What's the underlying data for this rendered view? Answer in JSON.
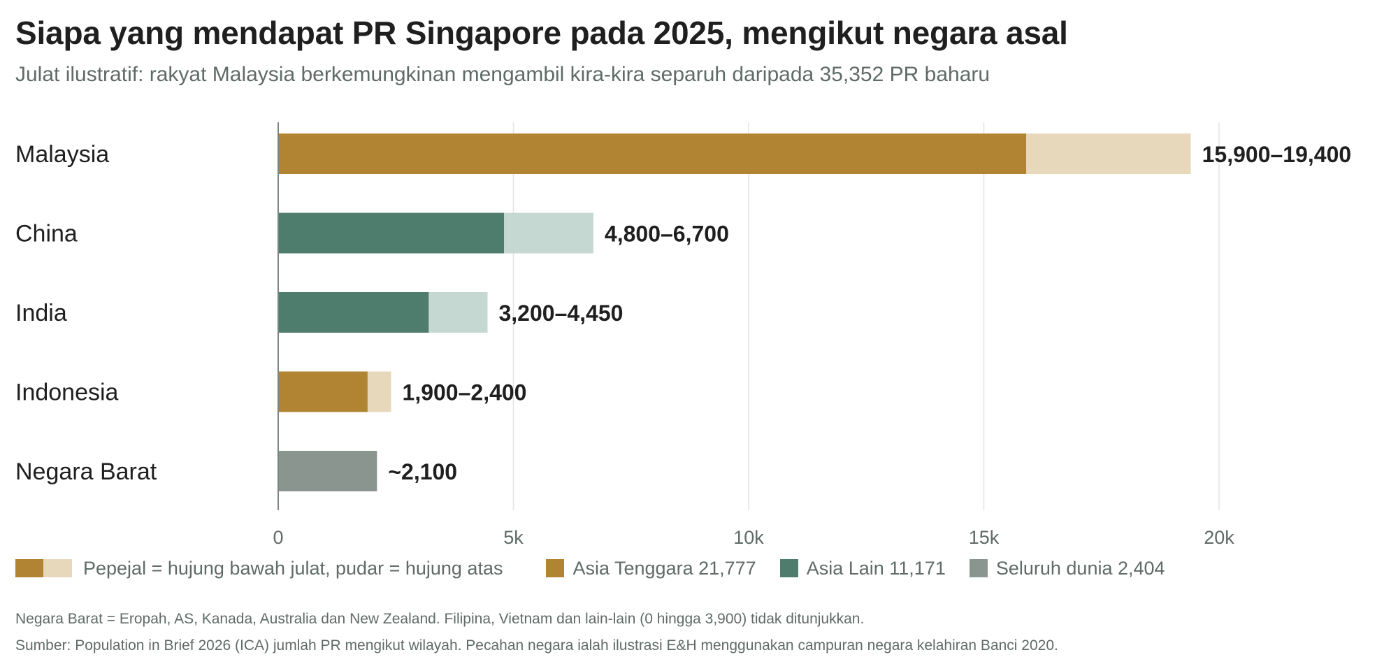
{
  "title": "Siapa yang mendapat PR Singapore pada 2025, mengikut negara asal",
  "subtitle": "Julat ilustratif: rakyat Malaysia berkemungkinan mengambil kira-kira separuh daripada 35,352 PR baharu",
  "colors": {
    "asia_tenggara": "#b08433",
    "asia_tenggara_fade": "#e7d8bc",
    "asia_lain": "#4e7d6d",
    "asia_lain_fade": "#c6d8d2",
    "seluruh_dunia": "#8b9590",
    "grid": "#e3e3e3",
    "axis": "#7a8580"
  },
  "legend": {
    "range_note": "Pepejal = hujung bawah julat, pudar = hujung atas",
    "items": [
      {
        "label": "Asia Tenggara 21,777",
        "color": "#b08433"
      },
      {
        "label": "Asia Lain 11,171",
        "color": "#4e7d6d"
      },
      {
        "label": "Seluruh dunia 2,404",
        "color": "#8b9590"
      }
    ]
  },
  "footnotes": [
    "Negara Barat = Eropah, AS, Kanada, Australia dan New Zealand. Filipina, Vietnam dan lain-lain (0 hingga 3,900) tidak ditunjukkan.",
    "Sumber: Population in Brief 2026 (ICA) jumlah PR mengikut wilayah. Pecahan negara ialah ilustrasi E&H menggunakan campuran negara kelahiran Banci 2020."
  ],
  "chart_data": {
    "type": "bar",
    "orientation": "horizontal",
    "xlim": [
      0,
      20000
    ],
    "ticks": [
      {
        "value": 0,
        "label": "0"
      },
      {
        "value": 5000,
        "label": "5k"
      },
      {
        "value": 10000,
        "label": "10k"
      },
      {
        "value": 15000,
        "label": "15k"
      },
      {
        "value": 20000,
        "label": "20k"
      }
    ],
    "grid": true,
    "categories": [
      {
        "name": "Malaysia",
        "low": 15900,
        "high": 19400,
        "label": "15,900–19,400",
        "color": "#b08433",
        "fade": "#e7d8bc"
      },
      {
        "name": "China",
        "low": 4800,
        "high": 6700,
        "label": "4,800–6,700",
        "color": "#4e7d6d",
        "fade": "#c6d8d2"
      },
      {
        "name": "India",
        "low": 3200,
        "high": 4450,
        "label": "3,200–4,450",
        "color": "#4e7d6d",
        "fade": "#c6d8d2"
      },
      {
        "name": "Indonesia",
        "low": 1900,
        "high": 2400,
        "label": "1,900–2,400",
        "color": "#b08433",
        "fade": "#e7d8bc"
      },
      {
        "name": "Negara Barat",
        "low": 2100,
        "high": 2100,
        "label": "~2,100",
        "color": "#8b9590",
        "fade": "#8b9590"
      }
    ]
  }
}
